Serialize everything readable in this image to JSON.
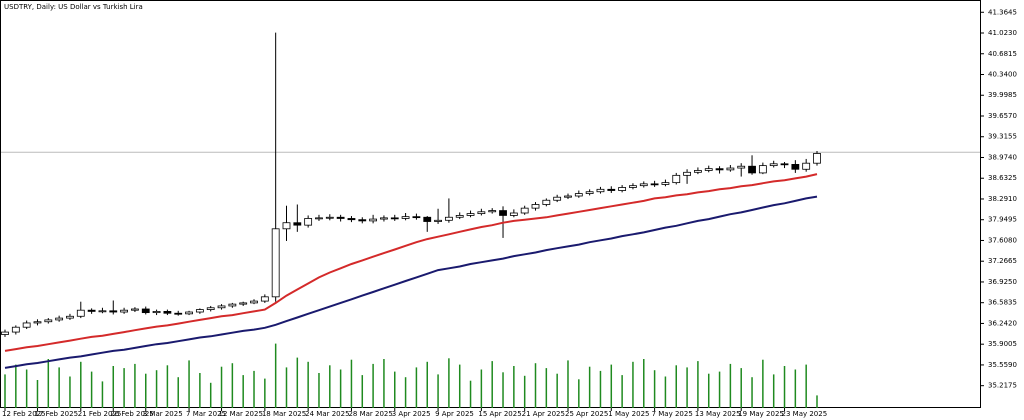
{
  "chart_data": {
    "type": "candlestick",
    "title": "USDTRY, Daily:  US Dollar vs Turkish Lira",
    "categories": [
      "12 Feb 2025",
      null,
      null,
      "17 Feb 2025",
      null,
      null,
      null,
      "21 Feb 2025",
      null,
      null,
      "26 Feb 2025",
      null,
      null,
      "3 Mar 2025",
      null,
      null,
      null,
      "7 Mar 2025",
      null,
      null,
      "12 Mar 2025",
      null,
      null,
      null,
      "18 Mar 2025",
      null,
      null,
      null,
      "24 Mar 2025",
      null,
      null,
      null,
      "28 Mar 2025",
      null,
      null,
      null,
      "3 Apr 2025",
      null,
      null,
      null,
      "9 Apr 2025",
      null,
      null,
      null,
      "15 Apr 2025",
      null,
      null,
      null,
      "21 Apr 2025",
      null,
      null,
      null,
      "25 Apr 2025",
      null,
      null,
      null,
      "1 May 2025",
      null,
      null,
      null,
      "7 May 2025",
      null,
      null,
      null,
      "13 May 2025",
      null,
      null,
      null,
      "19 May 2025",
      null,
      null,
      null,
      "23 May 2025",
      null,
      null,
      null
    ],
    "open": [
      36.06,
      36.1,
      36.18,
      36.25,
      36.27,
      36.3,
      36.33,
      36.36,
      36.46,
      36.44,
      36.45,
      36.43,
      36.46,
      36.48,
      36.42,
      36.44,
      36.41,
      36.4,
      36.43,
      36.47,
      36.5,
      36.53,
      36.56,
      36.58,
      36.61,
      36.68,
      37.8,
      37.9,
      37.86,
      37.97,
      37.98,
      37.99,
      37.97,
      37.95,
      37.93,
      37.96,
      37.98,
      37.97,
      38.0,
      37.99,
      37.92,
      37.94,
      37.99,
      38.02,
      38.05,
      38.08,
      38.1,
      38.02,
      38.06,
      38.14,
      38.2,
      38.27,
      38.32,
      38.34,
      38.38,
      38.41,
      38.45,
      38.43,
      38.48,
      38.51,
      38.54,
      38.53,
      38.56,
      38.68,
      38.73,
      38.76,
      38.79,
      38.77,
      38.8,
      38.83,
      38.72,
      38.84,
      38.87,
      38.86,
      38.78,
      38.88
    ],
    "high": [
      36.14,
      36.21,
      36.29,
      36.31,
      36.33,
      36.37,
      36.4,
      36.6,
      36.49,
      36.5,
      36.62,
      36.5,
      36.51,
      36.52,
      36.47,
      36.47,
      36.45,
      36.45,
      36.49,
      36.53,
      36.56,
      36.58,
      36.6,
      36.64,
      36.72,
      41.03,
      38.18,
      38.2,
      38.02,
      38.03,
      38.04,
      38.03,
      38.01,
      37.99,
      38.03,
      38.02,
      38.03,
      38.06,
      38.05,
      38.01,
      38.13,
      38.3,
      38.07,
      38.1,
      38.13,
      38.14,
      38.17,
      38.12,
      38.18,
      38.24,
      38.3,
      38.36,
      38.38,
      38.43,
      38.45,
      38.49,
      38.5,
      38.52,
      38.55,
      38.58,
      38.59,
      38.61,
      38.72,
      38.78,
      38.81,
      38.84,
      38.83,
      38.85,
      38.88,
      39.01,
      38.89,
      38.92,
      38.9,
      38.93,
      38.95,
      39.08
    ],
    "low": [
      36.02,
      36.06,
      36.15,
      36.21,
      36.24,
      36.27,
      36.3,
      36.33,
      36.4,
      36.41,
      36.39,
      36.4,
      36.43,
      36.39,
      36.38,
      36.38,
      36.37,
      36.38,
      36.4,
      36.44,
      36.47,
      36.5,
      36.53,
      36.56,
      36.58,
      36.6,
      37.6,
      37.75,
      37.82,
      37.93,
      37.94,
      37.92,
      37.91,
      37.89,
      37.89,
      37.92,
      37.93,
      37.94,
      37.95,
      37.75,
      37.88,
      37.9,
      37.96,
      37.99,
      38.02,
      38.05,
      37.65,
      37.99,
      38.03,
      38.1,
      38.17,
      38.24,
      38.29,
      38.31,
      38.35,
      38.38,
      38.39,
      38.4,
      38.45,
      38.48,
      38.49,
      38.5,
      38.53,
      38.54,
      38.7,
      38.73,
      38.71,
      38.74,
      38.66,
      38.69,
      38.7,
      38.81,
      38.8,
      38.72,
      38.74,
      38.84
    ],
    "close": [
      36.1,
      36.18,
      36.25,
      36.27,
      36.3,
      36.33,
      36.36,
      36.46,
      36.44,
      36.45,
      36.43,
      36.46,
      36.48,
      36.42,
      36.44,
      36.41,
      36.4,
      36.43,
      36.47,
      36.5,
      36.53,
      36.56,
      36.58,
      36.61,
      36.68,
      37.8,
      37.9,
      37.86,
      37.97,
      37.98,
      37.99,
      37.97,
      37.95,
      37.93,
      37.96,
      37.98,
      37.97,
      38.0,
      37.99,
      37.92,
      37.94,
      37.99,
      38.02,
      38.05,
      38.08,
      38.1,
      38.02,
      38.06,
      38.14,
      38.2,
      38.27,
      38.32,
      38.34,
      38.38,
      38.41,
      38.45,
      38.43,
      38.48,
      38.51,
      38.54,
      38.53,
      38.56,
      38.68,
      38.73,
      38.76,
      38.79,
      38.77,
      38.8,
      38.83,
      38.72,
      38.84,
      38.87,
      38.86,
      38.78,
      38.88,
      39.04
    ],
    "up_color": "#ffffff",
    "down_color": "#000000",
    "moving_averages": [
      {
        "color": "#d42a2a",
        "values": [
          35.79,
          35.82,
          35.85,
          35.87,
          35.9,
          35.93,
          35.96,
          35.99,
          36.02,
          36.04,
          36.07,
          36.1,
          36.13,
          36.16,
          36.19,
          36.21,
          36.24,
          36.27,
          36.3,
          36.33,
          36.36,
          36.38,
          36.41,
          36.44,
          36.47,
          36.58,
          36.7,
          36.8,
          36.9,
          37.0,
          37.08,
          37.15,
          37.22,
          37.28,
          37.34,
          37.4,
          37.46,
          37.52,
          37.58,
          37.63,
          37.67,
          37.71,
          37.75,
          37.79,
          37.83,
          37.86,
          37.9,
          37.93,
          37.95,
          37.97,
          37.99,
          38.02,
          38.05,
          38.08,
          38.11,
          38.14,
          38.17,
          38.2,
          38.23,
          38.26,
          38.3,
          38.32,
          38.35,
          38.37,
          38.4,
          38.42,
          38.45,
          38.47,
          38.5,
          38.52,
          38.55,
          38.58,
          38.6,
          38.63,
          38.66,
          38.7
        ]
      },
      {
        "color": "#1a1a6e",
        "values": [
          35.51,
          35.54,
          35.57,
          35.59,
          35.62,
          35.65,
          35.68,
          35.7,
          35.73,
          35.76,
          35.79,
          35.81,
          35.84,
          35.87,
          35.9,
          35.92,
          35.95,
          35.98,
          36.01,
          36.03,
          36.06,
          36.09,
          36.12,
          36.14,
          36.17,
          36.22,
          36.28,
          36.34,
          36.4,
          36.46,
          36.52,
          36.58,
          36.64,
          36.7,
          36.76,
          36.82,
          36.88,
          36.94,
          37.0,
          37.06,
          37.12,
          37.15,
          37.18,
          37.22,
          37.25,
          37.28,
          37.31,
          37.35,
          37.38,
          37.41,
          37.45,
          37.48,
          37.51,
          37.54,
          37.58,
          37.61,
          37.64,
          37.68,
          37.71,
          37.74,
          37.78,
          37.82,
          37.85,
          37.89,
          37.93,
          37.96,
          38.0,
          38.04,
          38.07,
          38.11,
          38.15,
          38.19,
          38.22,
          38.26,
          38.3,
          38.33
        ]
      }
    ],
    "volume": [
      48,
      62,
      55,
      40,
      70,
      58,
      45,
      66,
      52,
      38,
      60,
      57,
      63,
      49,
      54,
      61,
      44,
      68,
      50,
      36,
      59,
      64,
      47,
      53,
      42,
      92,
      58,
      72,
      66,
      50,
      61,
      55,
      69,
      47,
      63,
      70,
      52,
      44,
      58,
      66,
      48,
      71,
      62,
      39,
      55,
      67,
      51,
      60,
      46,
      64,
      57,
      49,
      68,
      41,
      59,
      53,
      62,
      47,
      66,
      70,
      54,
      45,
      61,
      58,
      67,
      49,
      52,
      63,
      57,
      44,
      69,
      48,
      60,
      55,
      62,
      18
    ],
    "volume_lim": [
      0,
      100
    ],
    "volume_color": "#1f8a1f",
    "current_price": 39.06,
    "ylim": [
      34.85,
      41.55
    ],
    "yticks": [
      41.3645,
      {
        "value": 41.023,
        "label": "41.0230"
      },
      40.6815,
      {
        "value": 40.34,
        "label": "40.3400"
      },
      39.9985,
      {
        "value": 39.657,
        "label": "39.6570"
      },
      39.3155,
      {
        "value": 38.974,
        "label": "38.9740"
      },
      38.6325,
      {
        "value": 38.291,
        "label": "38.2910"
      },
      37.9495,
      {
        "value": 37.608,
        "label": "37.6080"
      },
      37.2665,
      {
        "value": 36.925,
        "label": "36.9250"
      },
      36.5835,
      {
        "value": 36.242,
        "label": "36.2420"
      },
      35.9005,
      {
        "value": 35.559,
        "label": "35.5590"
      },
      35.2175
    ]
  }
}
